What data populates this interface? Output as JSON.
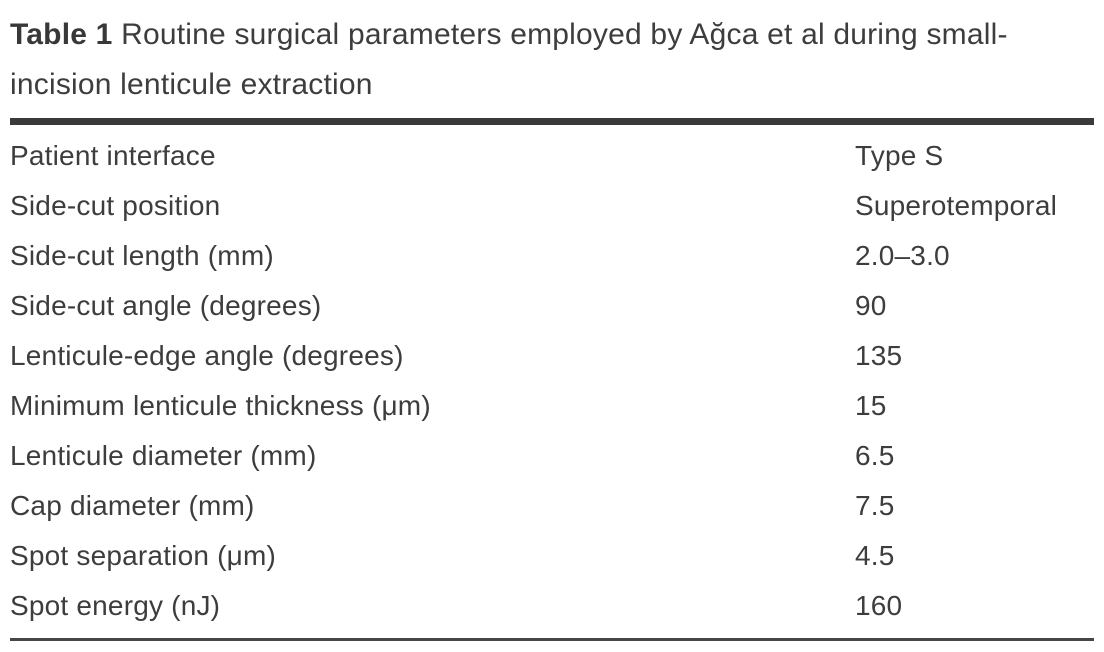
{
  "table": {
    "label": "Table 1",
    "caption": "Routine surgical parameters employed by Ağca et al during small-incision lenticule extraction",
    "rows": [
      {
        "parameter": "Patient interface",
        "value": "Type S"
      },
      {
        "parameter": "Side-cut position",
        "value": "Superotemporal"
      },
      {
        "parameter": "Side-cut length (mm)",
        "value": "2.0–3.0"
      },
      {
        "parameter": "Side-cut angle (degrees)",
        "value": "90"
      },
      {
        "parameter": "Lenticule-edge angle (degrees)",
        "value": "135"
      },
      {
        "parameter": "Minimum lenticule thickness (μm)",
        "value": "15"
      },
      {
        "parameter": "Lenticule diameter (mm)",
        "value": "6.5"
      },
      {
        "parameter": "Cap diameter (mm)",
        "value": "7.5"
      },
      {
        "parameter": "Spot separation (μm)",
        "value": "4.5"
      },
      {
        "parameter": "Spot energy (nJ)",
        "value": "160"
      }
    ],
    "colors": {
      "text": "#3d3d3d",
      "rule": "#3a3a3a",
      "background": "#ffffff"
    }
  }
}
